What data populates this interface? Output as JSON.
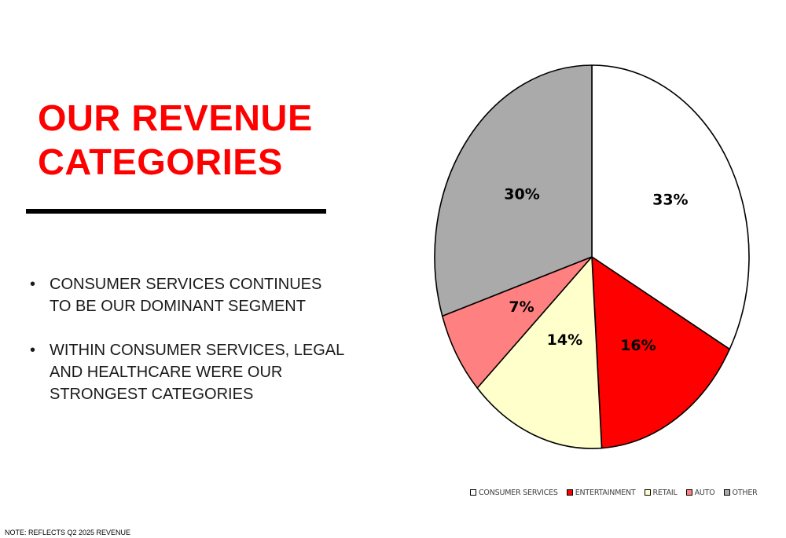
{
  "slide": {
    "title_lines": [
      "OUR REVENUE",
      "CATEGORIES"
    ],
    "bullets": [
      "CONSUMER SERVICES CONTINUES TO BE OUR DOMINANT SEGMENT",
      "WITHIN CONSUMER SERVICES, LEGAL AND HEALTHCARE WERE OUR STRONGEST CATEGORIES"
    ],
    "note": "NOTE: REFLECTS Q2 2025 REVENUE",
    "bullet_glyph": "•"
  },
  "chart_data": {
    "type": "pie",
    "title": "",
    "start_angle_deg": 0,
    "direction": "clockwise",
    "legend_position": "bottom",
    "slices": [
      {
        "name": "CONSUMER SERVICES",
        "value": 33,
        "label": "33%",
        "color": "#ffffff"
      },
      {
        "name": "ENTERTAINMENT",
        "value": 16,
        "label": "16%",
        "color": "#ff0000"
      },
      {
        "name": "RETAIL",
        "value": 14,
        "label": "14%",
        "color": "#ffffcc"
      },
      {
        "name": "AUTO",
        "value": 7,
        "label": "7%",
        "color": "#ff8080"
      },
      {
        "name": "OTHER",
        "value": 30,
        "label": "30%",
        "color": "#aaaaaa"
      }
    ]
  }
}
